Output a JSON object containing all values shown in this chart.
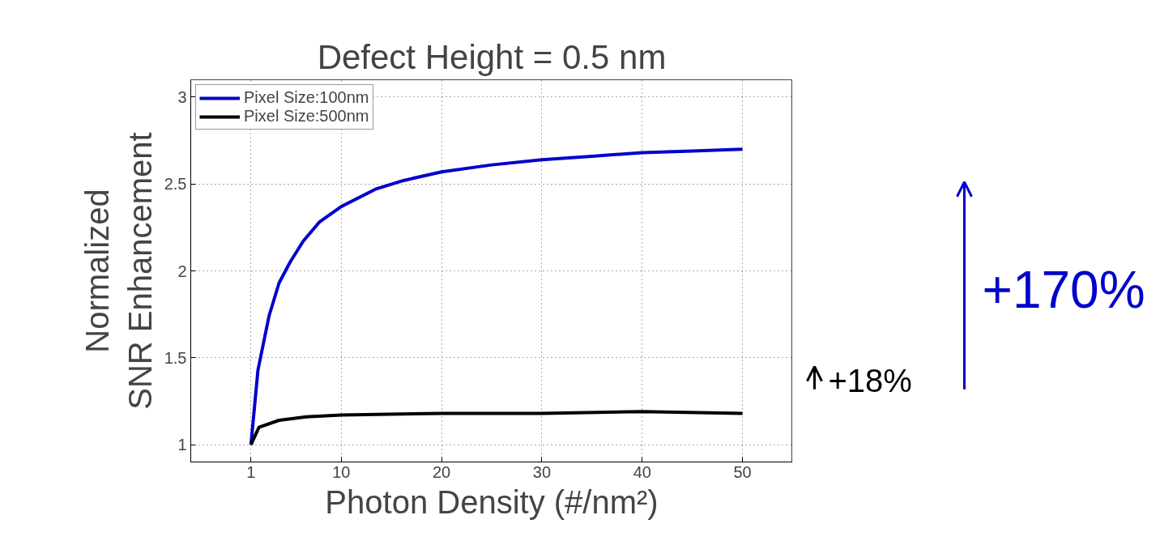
{
  "chart_data": {
    "type": "line",
    "title": "Defect Height = 0.5 nm",
    "xlabel": "Photon Density (#/nm²)",
    "ylabel": "Normalized\nSNR Enhancement",
    "xlim": [
      -5,
      55
    ],
    "ylim": [
      0.9,
      3.1
    ],
    "xticks": [
      1,
      10,
      20,
      30,
      40,
      50
    ],
    "yticks": [
      1,
      1.5,
      2,
      2.5,
      3
    ],
    "grid": true,
    "legend": "top left",
    "line_style": "solid",
    "annotations": [
      "+170%",
      "+18%"
    ],
    "series": [
      {
        "name": "Pixel Size:100nm",
        "color": "#0000cc",
        "x": [
          1,
          1.7,
          2.8,
          3.8,
          4.9,
          6.2,
          7.8,
          10,
          13.4,
          16.2,
          20,
          25,
          30,
          35,
          40,
          45,
          50
        ],
        "values": [
          1.0,
          1.43,
          1.74,
          1.93,
          2.05,
          2.17,
          2.28,
          2.37,
          2.47,
          2.52,
          2.57,
          2.61,
          2.64,
          2.66,
          2.68,
          2.69,
          2.7
        ]
      },
      {
        "name": "Pixel Size:500nm",
        "color": "#000000",
        "x": [
          1,
          1.8,
          3.8,
          6.5,
          10,
          20,
          30,
          40,
          50
        ],
        "values": [
          1.0,
          1.1,
          1.14,
          1.16,
          1.17,
          1.18,
          1.18,
          1.19,
          1.18
        ]
      }
    ]
  }
}
